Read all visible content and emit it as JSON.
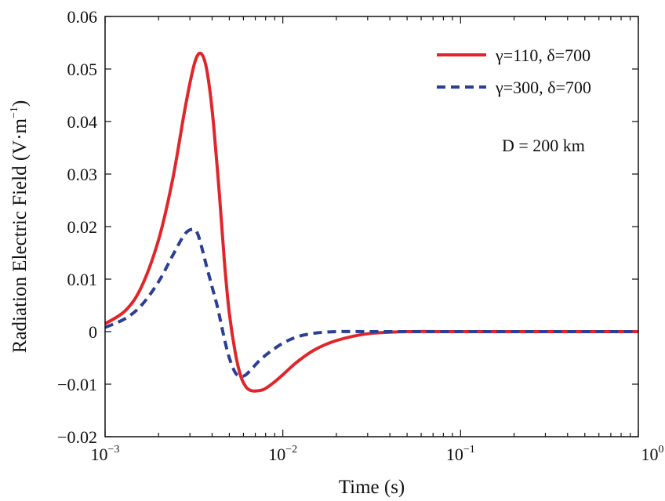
{
  "chart_data": {
    "type": "line",
    "title": "",
    "xlabel": "Time (s)",
    "ylabel_main": "Radiation Electric Field (V·m",
    "ylabel_sup": "−1",
    "ylabel_close": ")",
    "xscale": "log",
    "xlim": [
      0.001,
      1
    ],
    "ylim": [
      -0.02,
      0.06
    ],
    "xticks": [
      {
        "value": 0.001,
        "base": "10",
        "exp": "−3"
      },
      {
        "value": 0.01,
        "base": "10",
        "exp": "−2"
      },
      {
        "value": 0.1,
        "base": "10",
        "exp": "−1"
      },
      {
        "value": 1,
        "base": "10",
        "exp": "0"
      }
    ],
    "yticks": [
      {
        "value": -0.02,
        "label": "−0.02"
      },
      {
        "value": -0.01,
        "label": "−0.01"
      },
      {
        "value": 0,
        "label": "0"
      },
      {
        "value": 0.01,
        "label": "0.01"
      },
      {
        "value": 0.02,
        "label": "0.02"
      },
      {
        "value": 0.03,
        "label": "0.03"
      },
      {
        "value": 0.04,
        "label": "0.04"
      },
      {
        "value": 0.05,
        "label": "0.05"
      },
      {
        "value": 0.06,
        "label": "0.06"
      }
    ],
    "legend_position": "top-right",
    "annotation": "D = 200 km",
    "series": [
      {
        "name": "γ=110, δ=700",
        "color": "#e0262b",
        "style": "solid",
        "x": [
          0.001,
          0.0013,
          0.0016,
          0.002,
          0.0024,
          0.0028,
          0.0031,
          0.0033,
          0.0035,
          0.0037,
          0.0039,
          0.0041,
          0.0044,
          0.0047,
          0.005,
          0.0054,
          0.0058,
          0.0062,
          0.0066,
          0.007,
          0.0078,
          0.0088,
          0.01,
          0.012,
          0.015,
          0.02,
          0.03,
          0.05,
          0.1,
          1
        ],
        "y": [
          0.0015,
          0.004,
          0.0085,
          0.0175,
          0.029,
          0.042,
          0.0495,
          0.0525,
          0.0528,
          0.0505,
          0.0455,
          0.0385,
          0.026,
          0.013,
          0.0035,
          -0.004,
          -0.0085,
          -0.0105,
          -0.0112,
          -0.0113,
          -0.011,
          -0.0098,
          -0.0082,
          -0.0058,
          -0.0035,
          -0.0017,
          -0.0004,
          0,
          0,
          0
        ]
      },
      {
        "name": "γ=300, δ=700",
        "color": "#2b3f95",
        "style": "dashed",
        "x": [
          0.001,
          0.0013,
          0.0016,
          0.002,
          0.0024,
          0.0028,
          0.0031,
          0.0033,
          0.0035,
          0.0037,
          0.004,
          0.0043,
          0.0047,
          0.005,
          0.0054,
          0.0058,
          0.0062,
          0.0068,
          0.0075,
          0.0085,
          0.01,
          0.012,
          0.015,
          0.02,
          0.03,
          0.05,
          0.1,
          1
        ],
        "y": [
          0.0008,
          0.0025,
          0.005,
          0.0095,
          0.0145,
          0.0185,
          0.0195,
          0.0188,
          0.016,
          0.0128,
          0.0085,
          0.0045,
          -0.0015,
          -0.005,
          -0.0078,
          -0.0085,
          -0.0082,
          -0.0068,
          -0.0053,
          -0.0038,
          -0.0022,
          -0.001,
          -0.0003,
          0,
          0,
          0,
          0,
          0
        ]
      }
    ]
  }
}
